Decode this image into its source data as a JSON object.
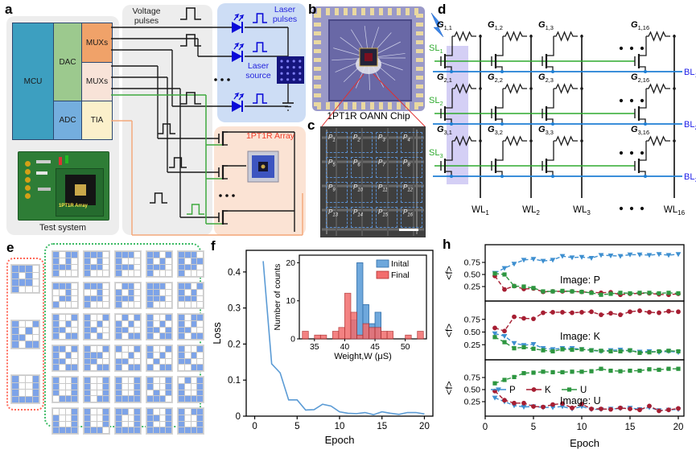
{
  "labels": {
    "a": "a",
    "b": "b",
    "c": "c",
    "d": "d",
    "e": "e",
    "f": "f",
    "h": "h"
  },
  "colors": {
    "mcu": "#3d9fc0",
    "dac": "#9cc98e",
    "muxs": "#f0a269",
    "muxs2": "#f8e3d8",
    "adc": "#74aede",
    "tia": "#fbf0cb",
    "laser_blue": "#0a0ad8",
    "label_blue": "#2323dd",
    "array_red": "#f03c28",
    "wire_green": "#3faa3f",
    "wire_orange": "#f4a97c",
    "bl_blue": "#1f7fd4",
    "sl_green": "#2eaa2e",
    "cell_blue": "#7da3e8",
    "loss_line": "#5b9bd5",
    "hist_initial": "#6fa8dc",
    "hist_final": "#f26d6d",
    "series_P": "#3e8fd0",
    "series_K": "#a61e32",
    "series_U": "#2d9640"
  },
  "panel_a": {
    "blocks": [
      {
        "label": "MCU"
      },
      {
        "label": "DAC"
      },
      {
        "label": "MUXs"
      },
      {
        "label": "MUXs"
      },
      {
        "label": "ADC"
      },
      {
        "label": "TIA"
      }
    ],
    "voltage_pulses": "Voltage pulses",
    "laser_pulses": "Laser pulses",
    "laser_source": "Laser source",
    "array_label": "1PT1R Array",
    "test_system": "Test system",
    "board_text": "1PT1R Array"
  },
  "panel_b": {
    "caption": "1PT1R OANN Chip"
  },
  "panel_c": {
    "cell_prefix": "P",
    "cells": [
      "1",
      "2",
      "3",
      "4",
      "5",
      "6",
      "7",
      "8",
      "9",
      "10",
      "11",
      "12",
      "13",
      "14",
      "15",
      "16"
    ]
  },
  "panel_d": {
    "sl_prefix": "SL",
    "bl_prefix": "BL",
    "wl_prefix": "WL",
    "g_prefix": "G",
    "sl_subs": [
      "1",
      "2",
      "3"
    ],
    "bl_subs": [
      "1",
      "2",
      "3"
    ],
    "wl_subs": [
      "1",
      "2",
      "3",
      "16"
    ],
    "g_subs": [
      [
        "1,1",
        "1,2",
        "1,3",
        "1,16"
      ],
      [
        "2,1",
        "2,2",
        "2,3",
        "2,16"
      ],
      [
        "3,1",
        "3,2",
        "3,3",
        "3,16"
      ]
    ]
  },
  "panel_e": {
    "references": [
      {
        "letter": "P",
        "pattern": "1110101011101000"
      },
      {
        "letter": "K",
        "pattern": "1001101011001011"
      },
      {
        "letter": "U",
        "pattern": "1001100110011111"
      }
    ],
    "variants": [
      "1011101011101000",
      "1110101011101000",
      "1110100011101000",
      "1101101011101000",
      "1110101111101000",
      "1110001001101000",
      "1110001011101000",
      "0110101011101000",
      "1110110011101000",
      "1101101011100000",
      "1001101011001011",
      "1001101011001010",
      "0101101011001011",
      "1001101011011011",
      "1011101011001011",
      "1101101011001011",
      "1001111011001011",
      "1001001011001011",
      "1001101001001011",
      "1001101011000011",
      "1001100110010111",
      "1001100110011011",
      "1001100110011111",
      "1001100101011110",
      "0101100110011111",
      "0001100110011111",
      "1001100110011110",
      "1101100110011111",
      "1001110110011111",
      "1011100110011111"
    ]
  },
  "chart_data": [
    {
      "type": "line",
      "panel": "f",
      "xlabel": "Epoch",
      "ylabel": "Loss",
      "x": [
        1,
        2,
        3,
        4,
        5,
        6,
        7,
        8,
        9,
        10,
        11,
        12,
        13,
        14,
        15,
        16,
        17,
        18,
        19,
        20
      ],
      "values": [
        0.43,
        0.145,
        0.12,
        0.045,
        0.045,
        0.017,
        0.018,
        0.033,
        0.028,
        0.012,
        0.008,
        0.007,
        0.01,
        0.004,
        0.012,
        0.008,
        0.005,
        0.01,
        0.01,
        0.006
      ],
      "xticks": [
        0,
        5,
        10,
        15,
        20
      ],
      "yticks": [
        0,
        0.1,
        0.2,
        0.3,
        0.4
      ],
      "ylim": [
        0,
        0.46
      ],
      "grid": false,
      "inset": {
        "type": "bar",
        "xlabel": "Weight,W (μS)",
        "ylabel": "Number of counts",
        "xticks": [
          35,
          40,
          45,
          50
        ],
        "yticks": [
          0,
          10,
          20
        ],
        "xlim": [
          32.5,
          53.5
        ],
        "ylim": [
          0,
          22
        ],
        "bin_width": 1,
        "legend_position": "top-right",
        "series": [
          {
            "name": "Inital",
            "bins": [
              [
                41,
                5
              ],
              [
                42,
                20
              ],
              [
                43,
                9
              ],
              [
                44,
                4
              ],
              [
                45,
                7
              ]
            ]
          },
          {
            "name": "Final",
            "bins": [
              [
                33,
                2
              ],
              [
                35,
                1
              ],
              [
                36,
                1
              ],
              [
                38,
                2
              ],
              [
                39,
                3
              ],
              [
                40,
                12
              ],
              [
                41,
                7
              ],
              [
                42,
                1
              ],
              [
                43,
                4
              ],
              [
                44,
                3
              ],
              [
                45,
                3
              ],
              [
                46,
                2
              ],
              [
                47,
                2
              ],
              [
                50,
                1
              ],
              [
                52,
                2
              ]
            ]
          }
        ]
      }
    },
    {
      "type": "line-multi",
      "panel": "h",
      "xlabel": "Epoch",
      "ylabel": "<f>",
      "x": [
        1,
        2,
        3,
        4,
        5,
        6,
        7,
        8,
        9,
        10,
        11,
        12,
        13,
        14,
        15,
        16,
        17,
        18,
        19,
        20
      ],
      "xticks": [
        0,
        5,
        10,
        15,
        20
      ],
      "yticks": [
        0.25,
        0.5,
        0.75
      ],
      "ylim": [
        0,
        1.02
      ],
      "legend": [
        "P",
        "K",
        "U"
      ],
      "legend_position": "bottom-subplot-left",
      "subplots": [
        {
          "label": "Image: P",
          "series": {
            "P": [
              0.53,
              0.63,
              0.72,
              0.8,
              0.82,
              0.78,
              0.8,
              0.88,
              0.85,
              0.86,
              0.84,
              0.9,
              0.89,
              0.88,
              0.91,
              0.91,
              0.9,
              0.92,
              0.9,
              0.92
            ],
            "K": [
              0.47,
              0.19,
              0.26,
              0.2,
              0.21,
              0.14,
              0.15,
              0.15,
              0.15,
              0.14,
              0.13,
              0.12,
              0.13,
              0.08,
              0.1,
              0.11,
              0.11,
              0.09,
              0.08,
              0.1
            ],
            "U": [
              0.52,
              0.5,
              0.26,
              0.25,
              0.22,
              0.15,
              0.15,
              0.16,
              0.15,
              0.14,
              0.12,
              0.08,
              0.1,
              0.12,
              0.11,
              0.12,
              0.12,
              0.11,
              0.12,
              0.11
            ]
          }
        },
        {
          "label": "Image: K",
          "series": {
            "K": [
              0.58,
              0.52,
              0.8,
              0.77,
              0.76,
              0.88,
              0.89,
              0.89,
              0.88,
              0.89,
              0.9,
              0.84,
              0.87,
              0.84,
              0.9,
              0.92,
              0.89,
              0.88,
              0.91,
              0.9
            ],
            "P": [
              0.47,
              0.42,
              0.28,
              0.24,
              0.26,
              0.18,
              0.16,
              0.18,
              0.18,
              0.16,
              0.14,
              0.12,
              0.14,
              0.15,
              0.13,
              0.11,
              0.12,
              0.1,
              0.12,
              0.1
            ],
            "U": [
              0.4,
              0.3,
              0.18,
              0.2,
              0.17,
              0.14,
              0.12,
              0.16,
              0.15,
              0.16,
              0.14,
              0.13,
              0.12,
              0.12,
              0.14,
              0.09,
              0.1,
              0.12,
              0.13,
              0.12
            ]
          }
        },
        {
          "label": "Image: U",
          "series": {
            "U": [
              0.63,
              0.7,
              0.76,
              0.84,
              0.85,
              0.87,
              0.86,
              0.86,
              0.87,
              0.87,
              0.88,
              0.93,
              0.89,
              0.88,
              0.89,
              0.89,
              0.92,
              0.91,
              0.93,
              0.93
            ],
            "P": [
              0.33,
              0.25,
              0.17,
              0.14,
              0.15,
              0.13,
              0.13,
              0.15,
              0.1,
              0.15,
              0.09,
              0.09,
              0.1,
              0.11,
              0.12,
              0.09,
              0.13,
              0.07,
              0.08,
              0.09
            ],
            "K": [
              0.47,
              0.28,
              0.22,
              0.22,
              0.15,
              0.14,
              0.19,
              0.21,
              0.12,
              0.2,
              0.1,
              0.1,
              0.09,
              0.12,
              0.1,
              0.08,
              0.16,
              0.06,
              0.08,
              0.11
            ]
          }
        }
      ]
    }
  ]
}
